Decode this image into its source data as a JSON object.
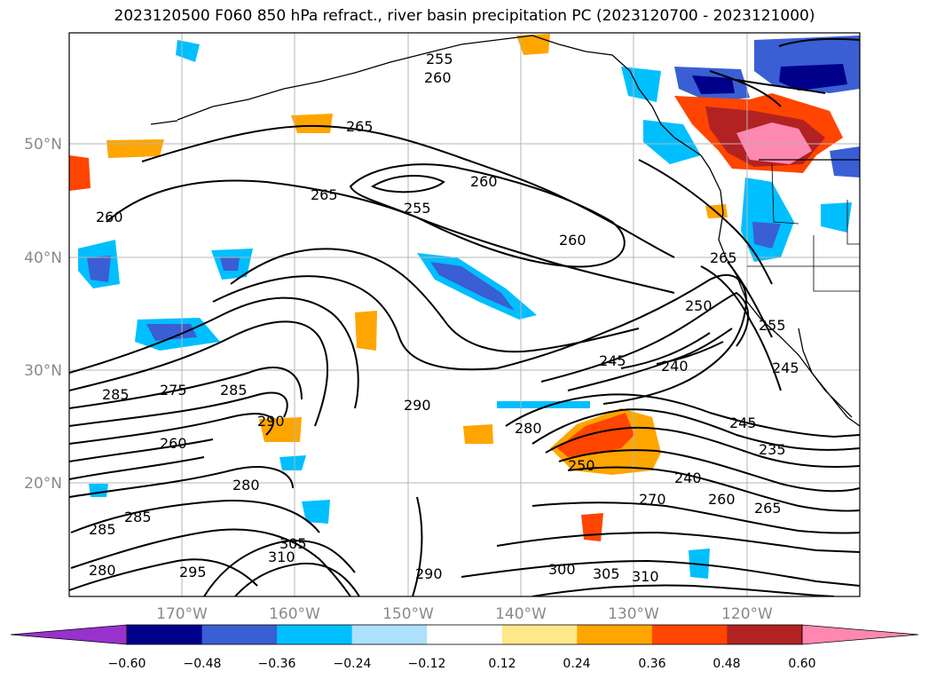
{
  "title": "2023120500 F060 850 hPa refract., river basin precipitation PC (2023120700 - 2023121000)",
  "map": {
    "lon_ticks": [
      "170°W",
      "160°W",
      "150°W",
      "140°W",
      "130°W",
      "120°W"
    ],
    "lat_ticks": [
      "50°N",
      "40°N",
      "30°N",
      "20°N"
    ],
    "gridlines": true
  },
  "colorbar": {
    "ticks": [
      "−0.60",
      "−0.48",
      "−0.36",
      "−0.24",
      "−0.12",
      "0.12",
      "0.24",
      "0.36",
      "0.48",
      "0.60"
    ],
    "colors": [
      "#9932CC",
      "#00008B",
      "#3A5ED4",
      "#00BFFF",
      "#ADE0FA",
      "#FFFFFF",
      "#FFE88A",
      "#FFA500",
      "#FF4500",
      "#B22222",
      "#FF88B0"
    ]
  },
  "contour_labels": [
    "255",
    "260",
    "265",
    "260",
    "265",
    "255",
    "260",
    "260",
    "265",
    "250",
    "255",
    "240",
    "245",
    "245",
    "240",
    "235",
    "260",
    "270",
    "265",
    "285",
    "290",
    "280",
    "290",
    "285",
    "280",
    "295",
    "305",
    "310",
    "300",
    "305",
    "310",
    "290",
    "285",
    "280",
    "275",
    "250",
    "245",
    "285",
    "260"
  ]
}
